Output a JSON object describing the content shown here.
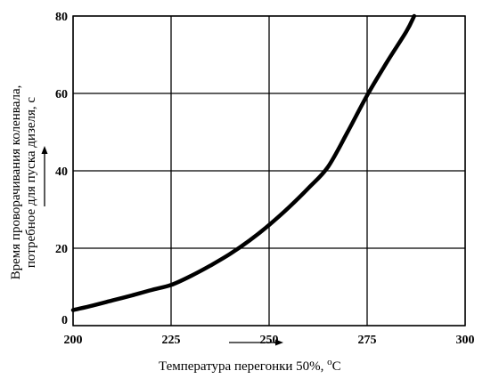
{
  "chart_data": {
    "type": "line",
    "title": "",
    "xlabel": "Температура перегонки 50%, ",
    "xlabel_unit": "C",
    "xlabel_unit_super": "o",
    "ylabel_line1": "Время проворачивания коленвала,",
    "ylabel_line2": "потребное для пуска дизеля, с",
    "xlim": [
      200,
      300
    ],
    "ylim": [
      0,
      80
    ],
    "x_ticks": [
      200,
      225,
      250,
      275,
      300
    ],
    "y_ticks": [
      0,
      20,
      40,
      60,
      80
    ],
    "x_tick_labels": [
      "200",
      "225",
      "250",
      "275",
      "300"
    ],
    "y_tick_labels": [
      "0",
      "20",
      "40",
      "60",
      "80"
    ],
    "grid": true,
    "series": [
      {
        "x": [
          200,
          205,
          210,
          215,
          220,
          225,
          230,
          235,
          240,
          245,
          250,
          255,
          260,
          265,
          270,
          275,
          280,
          285,
          287
        ],
        "y": [
          4,
          5.2,
          6.5,
          7.8,
          9.2,
          10.5,
          12.8,
          15.5,
          18.5,
          22,
          26,
          30.5,
          35.5,
          41,
          50,
          59.5,
          68,
          76,
          80
        ]
      }
    ]
  }
}
